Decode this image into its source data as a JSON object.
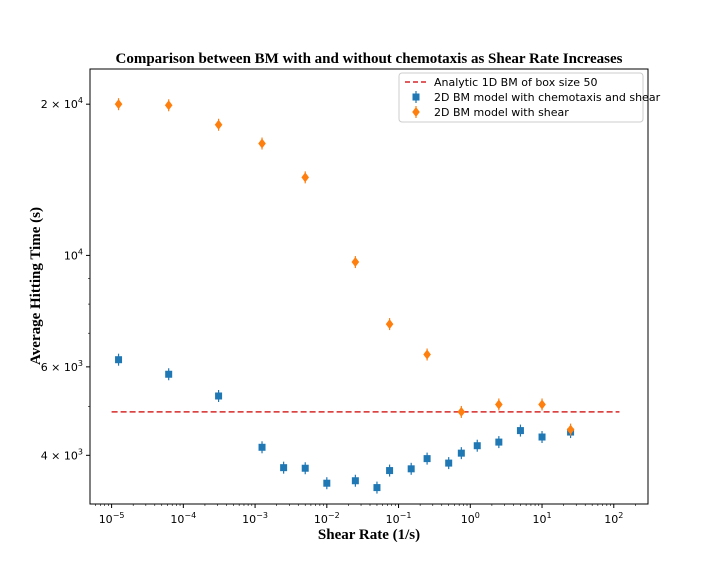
{
  "chart_data": {
    "type": "scatter",
    "title": "Comparison between BM with and without chemotaxis as Shear Rate Increases",
    "xlabel": "Shear Rate (1/s)",
    "ylabel": "Average Hitting Time (s)",
    "xscale": "log",
    "yscale": "log",
    "xlim": [
      5e-06,
      300
    ],
    "ylim": [
      3200,
      23500
    ],
    "legend_position": "top-right",
    "x_ticks": [
      {
        "value": 1e-05,
        "base": "10",
        "exp": "−5"
      },
      {
        "value": 0.0001,
        "base": "10",
        "exp": "−4"
      },
      {
        "value": 0.001,
        "base": "10",
        "exp": "−3"
      },
      {
        "value": 0.01,
        "base": "10",
        "exp": "−2"
      },
      {
        "value": 0.1,
        "base": "10",
        "exp": "−1"
      },
      {
        "value": 1,
        "base": "10",
        "exp": "0"
      },
      {
        "value": 10,
        "base": "10",
        "exp": "1"
      },
      {
        "value": 100,
        "base": "10",
        "exp": "2"
      }
    ],
    "y_ticks": [
      {
        "value": 4000,
        "mant": "4 × ",
        "base": "10",
        "exp": "3"
      },
      {
        "value": 6000,
        "mant": "6 × ",
        "base": "10",
        "exp": "3"
      },
      {
        "value": 10000,
        "mant": "",
        "base": "10",
        "exp": "4"
      },
      {
        "value": 20000,
        "mant": "2 × ",
        "base": "10",
        "exp": "4"
      }
    ],
    "y_minor_ticks": [
      5000,
      7000,
      8000,
      9000
    ],
    "reference_line": {
      "name": "Analytic 1D BM of box size 50",
      "y": 4880,
      "x_range": [
        1e-05,
        120
      ],
      "color": "#d62728"
    },
    "series": [
      {
        "name": "2D BM model with chemotaxis and shear",
        "marker": "square",
        "color": "#1f77b4",
        "points": [
          {
            "x": 1.25e-05,
            "y": 6200
          },
          {
            "x": 6.25e-05,
            "y": 5800
          },
          {
            "x": 0.00031,
            "y": 5250
          },
          {
            "x": 0.00125,
            "y": 4150
          },
          {
            "x": 0.0025,
            "y": 3780
          },
          {
            "x": 0.005,
            "y": 3770
          },
          {
            "x": 0.01,
            "y": 3520
          },
          {
            "x": 0.025,
            "y": 3560
          },
          {
            "x": 0.05,
            "y": 3450
          },
          {
            "x": 0.075,
            "y": 3730
          },
          {
            "x": 0.15,
            "y": 3760
          },
          {
            "x": 0.25,
            "y": 3940
          },
          {
            "x": 0.5,
            "y": 3860
          },
          {
            "x": 0.75,
            "y": 4040
          },
          {
            "x": 1.25,
            "y": 4180
          },
          {
            "x": 2.5,
            "y": 4250
          },
          {
            "x": 5,
            "y": 4480
          },
          {
            "x": 10,
            "y": 4350
          },
          {
            "x": 25,
            "y": 4450
          }
        ]
      },
      {
        "name": "2D BM model with shear",
        "marker": "diamond",
        "color": "#ff7f0e",
        "points": [
          {
            "x": 1.25e-05,
            "y": 20000
          },
          {
            "x": 6.25e-05,
            "y": 19900
          },
          {
            "x": 0.00031,
            "y": 18200
          },
          {
            "x": 0.00125,
            "y": 16700
          },
          {
            "x": 0.005,
            "y": 14300
          },
          {
            "x": 0.025,
            "y": 9700
          },
          {
            "x": 0.075,
            "y": 7300
          },
          {
            "x": 0.25,
            "y": 6350
          },
          {
            "x": 0.75,
            "y": 4880
          },
          {
            "x": 2.5,
            "y": 5050
          },
          {
            "x": 10,
            "y": 5050
          },
          {
            "x": 25,
            "y": 4500
          }
        ]
      }
    ]
  }
}
